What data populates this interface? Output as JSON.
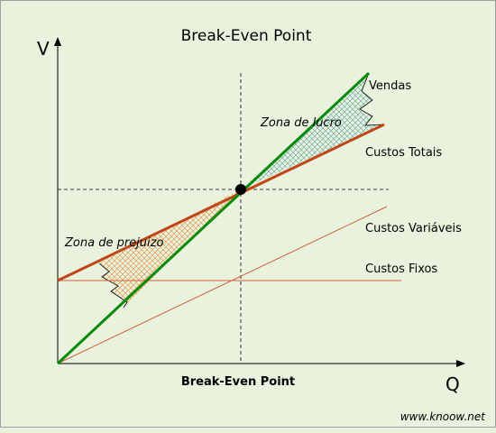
{
  "title": "Break-Even Point",
  "axes": {
    "y_label": "V",
    "x_label": "Q"
  },
  "x_axis_caption": "Break-Even Point",
  "labels": {
    "vendas": "Vendas",
    "custos_totais": "Custos Totais",
    "custos_variaveis": "Custos Variáveis",
    "custos_fixos": "Custos Fixos",
    "zona_lucro": "Zona de lucro",
    "zona_prejuizo": "Zona de prejuizo"
  },
  "watermark": "www.knoow.net",
  "colors": {
    "background": "#e8f2dc",
    "vendas": "#0a8a0a",
    "custos_totais": "#c0461a",
    "thin_lines": "#d06040",
    "profit_hatch": "#5aa0a0",
    "loss_hatch": "#e08a3a",
    "break_even_point": "#000000"
  }
}
